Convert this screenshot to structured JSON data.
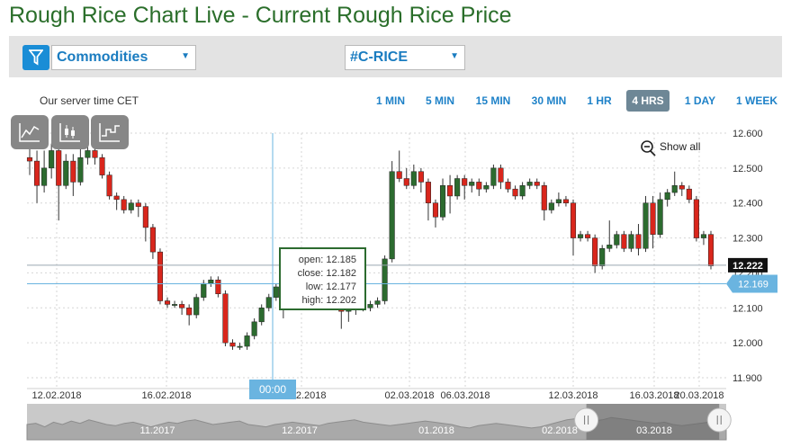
{
  "page_title": "Rough Rice Chart Live - Current Rough Rice Price",
  "selectors": {
    "filter_icon": "funnel-icon",
    "category": "Commodities",
    "instrument": "#C-RICE"
  },
  "server_time": "Our server time CET",
  "timeframes": [
    {
      "label": "1 MIN",
      "active": false
    },
    {
      "label": "5 MIN",
      "active": false
    },
    {
      "label": "15 MIN",
      "active": false
    },
    {
      "label": "30 MIN",
      "active": false
    },
    {
      "label": "1 HR",
      "active": false
    },
    {
      "label": "4 HRS",
      "active": true
    },
    {
      "label": "1 DAY",
      "active": false
    },
    {
      "label": "1 WEEK",
      "active": false
    }
  ],
  "tools": [
    {
      "name": "line-chart-icon"
    },
    {
      "name": "candlestick-icon"
    },
    {
      "name": "step-chart-icon"
    }
  ],
  "show_all": "Show all",
  "chart_data": {
    "type": "candlestick",
    "y_ticks": [
      "12.600",
      "12.500",
      "12.400",
      "12.300",
      "12.200",
      "12.100",
      "12.000",
      "11.900"
    ],
    "ylim": [
      11.9,
      12.6
    ],
    "x_ticks": [
      "12.02.2018",
      "16.02.2018",
      "22.02.2018",
      "02.03.2018",
      "06.03.2018",
      "12.03.2018",
      "16.03.2018",
      "20.03.2018"
    ],
    "crosshair_x_label": "00:00",
    "current_price": "12.222",
    "crosshair_price": "12.169",
    "tooltip": {
      "open_label": "open:",
      "open": "12.185",
      "close_label": "close:",
      "close": "12.182",
      "low_label": "low:",
      "low": "12.177",
      "high_label": "high:",
      "high": "12.202"
    },
    "candles": [
      [
        12.53,
        12.52,
        12.58,
        12.48
      ],
      [
        12.52,
        12.45,
        12.55,
        12.4
      ],
      [
        12.45,
        12.5,
        12.55,
        12.43
      ],
      [
        12.5,
        12.55,
        12.57,
        12.47
      ],
      [
        12.55,
        12.45,
        12.56,
        12.35
      ],
      [
        12.45,
        12.52,
        12.54,
        12.44
      ],
      [
        12.52,
        12.46,
        12.54,
        12.42
      ],
      [
        12.46,
        12.53,
        12.56,
        12.45
      ],
      [
        12.53,
        12.55,
        12.57,
        12.51
      ],
      [
        12.55,
        12.53,
        12.56,
        12.51
      ],
      [
        12.53,
        12.48,
        12.54,
        12.47
      ],
      [
        12.48,
        12.42,
        12.49,
        12.41
      ],
      [
        12.42,
        12.41,
        12.43,
        12.38
      ],
      [
        12.41,
        12.38,
        12.42,
        12.37
      ],
      [
        12.38,
        12.4,
        12.41,
        12.37
      ],
      [
        12.4,
        12.39,
        12.41,
        12.36
      ],
      [
        12.39,
        12.33,
        12.4,
        12.29
      ],
      [
        12.33,
        12.26,
        12.34,
        12.24
      ],
      [
        12.26,
        12.12,
        12.27,
        12.11
      ],
      [
        12.12,
        12.11,
        12.13,
        12.1
      ],
      [
        12.11,
        12.11,
        12.12,
        12.1
      ],
      [
        12.11,
        12.1,
        12.12,
        12.08
      ],
      [
        12.1,
        12.08,
        12.11,
        12.05
      ],
      [
        12.08,
        12.13,
        12.14,
        12.07
      ],
      [
        12.13,
        12.17,
        12.18,
        12.12
      ],
      [
        12.17,
        12.18,
        12.19,
        12.16
      ],
      [
        12.18,
        12.14,
        12.19,
        12.13
      ],
      [
        12.14,
        12.0,
        12.15,
        11.99
      ],
      [
        12.0,
        11.99,
        12.01,
        11.98
      ],
      [
        11.99,
        11.99,
        12.0,
        11.98
      ],
      [
        11.99,
        12.02,
        12.03,
        11.98
      ],
      [
        12.02,
        12.06,
        12.07,
        12.01
      ],
      [
        12.06,
        12.1,
        12.11,
        12.05
      ],
      [
        12.1,
        12.13,
        12.14,
        12.09
      ],
      [
        12.13,
        12.16,
        12.17,
        12.12
      ],
      [
        12.16,
        12.18,
        12.19,
        12.07
      ],
      [
        12.18,
        12.2,
        12.21,
        12.17
      ],
      [
        12.185,
        12.182,
        12.202,
        12.177
      ],
      [
        12.18,
        12.14,
        12.19,
        12.12
      ],
      [
        12.14,
        12.13,
        12.15,
        12.11
      ],
      [
        12.13,
        12.12,
        12.14,
        12.11
      ],
      [
        12.12,
        12.11,
        12.13,
        12.1
      ],
      [
        12.11,
        12.13,
        12.14,
        12.1
      ],
      [
        12.13,
        12.09,
        12.14,
        12.04
      ],
      [
        12.09,
        12.1,
        12.11,
        12.06
      ],
      [
        12.1,
        12.11,
        12.12,
        12.08
      ],
      [
        12.11,
        12.1,
        12.12,
        12.09
      ],
      [
        12.1,
        12.11,
        12.12,
        12.09
      ],
      [
        12.11,
        12.12,
        12.13,
        12.1
      ],
      [
        12.12,
        12.24,
        12.25,
        12.11
      ],
      [
        12.24,
        12.49,
        12.52,
        12.23
      ],
      [
        12.49,
        12.47,
        12.55,
        12.46
      ],
      [
        12.47,
        12.45,
        12.5,
        12.44
      ],
      [
        12.45,
        12.49,
        12.51,
        12.44
      ],
      [
        12.49,
        12.46,
        12.5,
        12.43
      ],
      [
        12.46,
        12.4,
        12.47,
        12.35
      ],
      [
        12.4,
        12.36,
        12.41,
        12.33
      ],
      [
        12.36,
        12.45,
        12.47,
        12.35
      ],
      [
        12.45,
        12.42,
        12.48,
        12.37
      ],
      [
        12.42,
        12.47,
        12.48,
        12.41
      ],
      [
        12.47,
        12.45,
        12.48,
        12.41
      ],
      [
        12.45,
        12.46,
        12.47,
        12.43
      ],
      [
        12.46,
        12.44,
        12.47,
        12.42
      ],
      [
        12.44,
        12.45,
        12.46,
        12.43
      ],
      [
        12.45,
        12.5,
        12.51,
        12.44
      ],
      [
        12.5,
        12.46,
        12.51,
        12.44
      ],
      [
        12.46,
        12.44,
        12.47,
        12.43
      ],
      [
        12.44,
        12.42,
        12.45,
        12.41
      ],
      [
        12.42,
        12.45,
        12.46,
        12.41
      ],
      [
        12.45,
        12.46,
        12.47,
        12.44
      ],
      [
        12.46,
        12.45,
        12.47,
        12.44
      ],
      [
        12.45,
        12.38,
        12.46,
        12.35
      ],
      [
        12.38,
        12.4,
        12.41,
        12.37
      ],
      [
        12.4,
        12.41,
        12.43,
        12.39
      ],
      [
        12.41,
        12.4,
        12.42,
        12.39
      ],
      [
        12.4,
        12.3,
        12.41,
        12.25
      ],
      [
        12.3,
        12.31,
        12.32,
        12.29
      ],
      [
        12.31,
        12.3,
        12.32,
        12.29
      ],
      [
        12.3,
        12.22,
        12.31,
        12.2
      ],
      [
        12.22,
        12.27,
        12.28,
        12.21
      ],
      [
        12.27,
        12.28,
        12.35,
        12.26
      ],
      [
        12.28,
        12.31,
        12.32,
        12.27
      ],
      [
        12.31,
        12.27,
        12.32,
        12.26
      ],
      [
        12.27,
        12.31,
        12.32,
        12.26
      ],
      [
        12.31,
        12.27,
        12.34,
        12.25
      ],
      [
        12.27,
        12.4,
        12.42,
        12.26
      ],
      [
        12.4,
        12.31,
        12.42,
        12.27
      ],
      [
        12.31,
        12.41,
        12.43,
        12.3
      ],
      [
        12.41,
        12.43,
        12.44,
        12.39
      ],
      [
        12.43,
        12.45,
        12.49,
        12.42
      ],
      [
        12.45,
        12.44,
        12.46,
        12.42
      ],
      [
        12.44,
        12.41,
        12.45,
        12.4
      ],
      [
        12.41,
        12.3,
        12.42,
        12.29
      ],
      [
        12.3,
        12.31,
        12.32,
        12.28
      ],
      [
        12.31,
        12.22,
        12.32,
        12.21
      ]
    ],
    "navigator": {
      "labels": [
        "11.2017",
        "12.2017",
        "01.2018",
        "02.2018",
        "03.2018"
      ],
      "series": [
        0.5,
        0.55,
        0.4,
        0.6,
        0.5,
        0.65,
        0.55,
        0.7,
        0.6,
        0.5,
        0.45,
        0.55,
        0.6,
        0.5,
        0.4,
        0.5,
        0.6,
        0.55,
        0.65,
        0.7,
        0.6,
        0.5,
        0.55,
        0.6,
        0.65,
        0.5,
        0.45,
        0.4,
        0.5,
        0.55,
        0.6,
        0.55,
        0.5,
        0.45,
        0.55,
        0.6,
        0.65,
        0.7,
        0.6,
        0.55,
        0.5,
        0.45,
        0.5,
        0.55,
        0.6,
        0.65,
        0.6,
        0.55,
        0.5,
        0.4,
        0.35,
        0.45,
        0.5,
        0.55,
        0.5,
        0.45,
        0.4,
        0.35,
        0.4,
        0.5,
        0.6,
        0.7,
        0.75,
        0.7,
        0.65,
        0.7,
        0.8,
        0.75,
        0.7,
        0.65,
        0.6,
        0.55,
        0.6,
        0.5,
        0.45,
        0.5,
        0.55,
        0.6,
        0.65,
        0.7
      ],
      "selected_start": 0.8,
      "selected_end": 0.99
    }
  }
}
